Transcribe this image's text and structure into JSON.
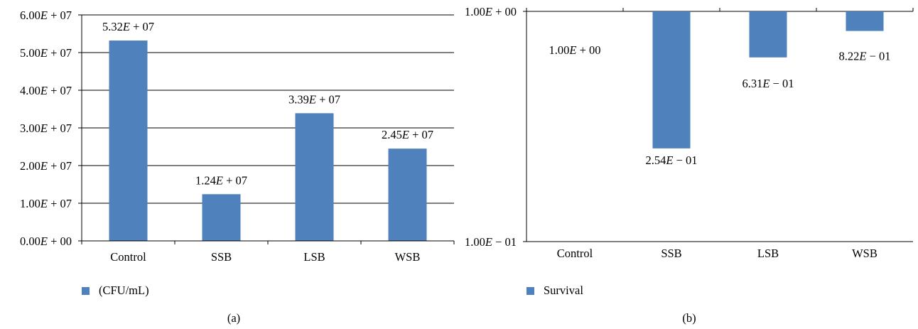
{
  "chart_data": [
    {
      "panel": "(a)",
      "type": "bar",
      "scale": "linear",
      "categories": [
        "Control",
        "SSB",
        "LSB",
        "WSB"
      ],
      "series": [
        {
          "name": "(CFU/mL)",
          "values": [
            53200000,
            12400000,
            33900000,
            24500000
          ],
          "color": "#4f81bd"
        }
      ],
      "data_labels": [
        "5.32E + 07",
        "1.24E + 07",
        "3.39E + 07",
        "2.45E + 07"
      ],
      "ytick_values": [
        0,
        10000000,
        20000000,
        30000000,
        40000000,
        50000000,
        60000000
      ],
      "ytick_labels": [
        "0.00E + 00",
        "1.00E + 07",
        "2.00E + 07",
        "3.00E + 07",
        "4.00E + 07",
        "5.00E + 07",
        "6.00E + 07"
      ],
      "ylim": [
        0,
        60000000
      ],
      "grid": true,
      "legend_position": "bottom-left"
    },
    {
      "panel": "(b)",
      "type": "bar",
      "scale": "log",
      "baseline": 1,
      "categories": [
        "Control",
        "SSB",
        "LSB",
        "WSB"
      ],
      "series": [
        {
          "name": "Survival",
          "values": [
            1.0,
            0.254,
            0.631,
            0.822
          ],
          "color": "#4f81bd"
        }
      ],
      "data_labels": [
        "1.00E + 00",
        "2.54E − 01",
        "6.31E − 01",
        "8.22E − 01"
      ],
      "ytick_values": [
        1,
        0.1
      ],
      "ytick_labels": [
        "1.00E + 00",
        "1.00E − 01"
      ],
      "ylim": [
        0.1,
        1
      ],
      "grid": true,
      "legend_position": "bottom-left"
    }
  ]
}
